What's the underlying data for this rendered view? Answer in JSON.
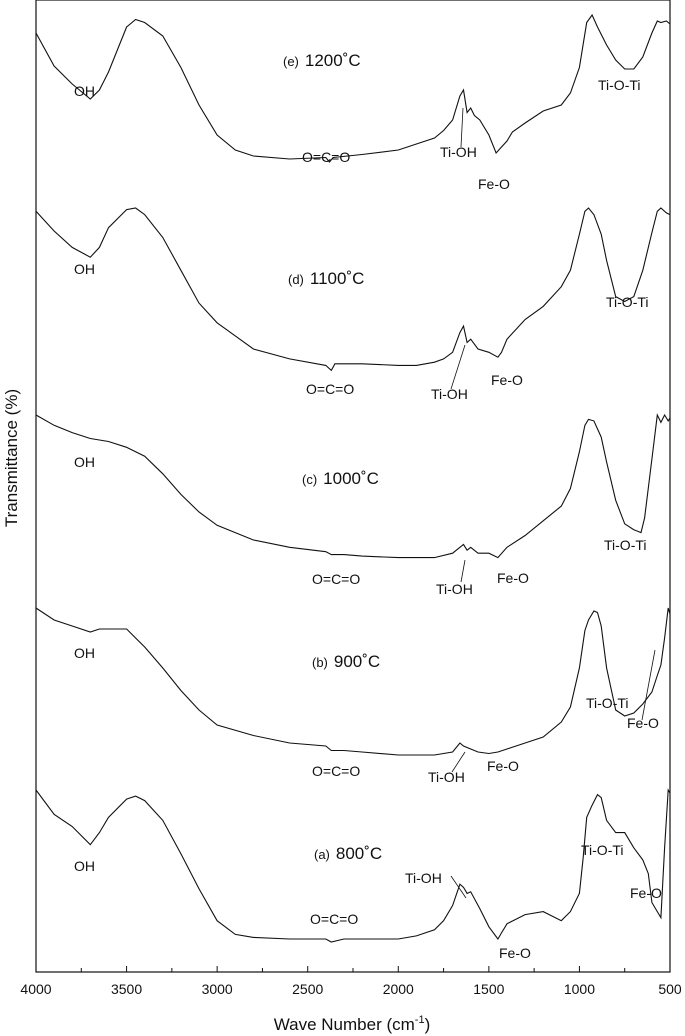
{
  "chart_data": {
    "type": "line",
    "xlabel_main": "Wave Number (cm",
    "xlabel_sup": "-1",
    "xlabel_end": ")",
    "ylabel": "Transmittance (%)",
    "xlim": [
      4000,
      500
    ],
    "xticks": [
      "4000",
      "3500",
      "3000",
      "2500",
      "2000",
      "1500",
      "1000",
      "500"
    ],
    "series": [
      {
        "prefix": "(e)",
        "temp": "1200˚C",
        "points": [
          [
            4000,
            0.88
          ],
          [
            3900,
            0.66
          ],
          [
            3800,
            0.54
          ],
          [
            3700,
            0.44
          ],
          [
            3650,
            0.5
          ],
          [
            3600,
            0.62
          ],
          [
            3500,
            0.92
          ],
          [
            3450,
            0.97
          ],
          [
            3400,
            0.95
          ],
          [
            3300,
            0.86
          ],
          [
            3200,
            0.65
          ],
          [
            3100,
            0.4
          ],
          [
            3000,
            0.2
          ],
          [
            2900,
            0.1
          ],
          [
            2800,
            0.06
          ],
          [
            2600,
            0.04
          ],
          [
            2400,
            0.05
          ],
          [
            2380,
            0.02
          ],
          [
            2360,
            0.05
          ],
          [
            2200,
            0.07
          ],
          [
            2000,
            0.1
          ],
          [
            1900,
            0.14
          ],
          [
            1800,
            0.18
          ],
          [
            1750,
            0.23
          ],
          [
            1700,
            0.3
          ],
          [
            1660,
            0.46
          ],
          [
            1640,
            0.5
          ],
          [
            1620,
            0.35
          ],
          [
            1600,
            0.38
          ],
          [
            1580,
            0.33
          ],
          [
            1550,
            0.3
          ],
          [
            1500,
            0.2
          ],
          [
            1460,
            0.08
          ],
          [
            1430,
            0.12
          ],
          [
            1400,
            0.16
          ],
          [
            1370,
            0.22
          ],
          [
            1300,
            0.28
          ],
          [
            1200,
            0.36
          ],
          [
            1100,
            0.4
          ],
          [
            1050,
            0.48
          ],
          [
            1000,
            0.65
          ],
          [
            960,
            0.95
          ],
          [
            930,
            1.0
          ],
          [
            900,
            0.92
          ],
          [
            850,
            0.8
          ],
          [
            800,
            0.7
          ],
          [
            750,
            0.64
          ],
          [
            700,
            0.64
          ],
          [
            650,
            0.72
          ],
          [
            600,
            0.88
          ],
          [
            570,
            0.96
          ],
          [
            550,
            0.95
          ],
          [
            520,
            0.96
          ],
          [
            500,
            0.94
          ]
        ]
      },
      {
        "prefix": "(d)",
        "temp": "1100˚C",
        "points": [
          [
            4000,
            0.98
          ],
          [
            3900,
            0.86
          ],
          [
            3800,
            0.76
          ],
          [
            3700,
            0.7
          ],
          [
            3650,
            0.76
          ],
          [
            3600,
            0.88
          ],
          [
            3500,
            0.99
          ],
          [
            3450,
            1.0
          ],
          [
            3400,
            0.96
          ],
          [
            3300,
            0.82
          ],
          [
            3200,
            0.62
          ],
          [
            3100,
            0.42
          ],
          [
            3000,
            0.3
          ],
          [
            2900,
            0.22
          ],
          [
            2800,
            0.14
          ],
          [
            2600,
            0.08
          ],
          [
            2400,
            0.04
          ],
          [
            2370,
            0.01
          ],
          [
            2350,
            0.05
          ],
          [
            2200,
            0.05
          ],
          [
            2000,
            0.04
          ],
          [
            1900,
            0.04
          ],
          [
            1800,
            0.06
          ],
          [
            1750,
            0.08
          ],
          [
            1700,
            0.12
          ],
          [
            1660,
            0.24
          ],
          [
            1640,
            0.28
          ],
          [
            1620,
            0.18
          ],
          [
            1600,
            0.2
          ],
          [
            1560,
            0.14
          ],
          [
            1500,
            0.12
          ],
          [
            1450,
            0.09
          ],
          [
            1430,
            0.12
          ],
          [
            1400,
            0.2
          ],
          [
            1300,
            0.32
          ],
          [
            1200,
            0.4
          ],
          [
            1100,
            0.52
          ],
          [
            1050,
            0.62
          ],
          [
            1000,
            0.84
          ],
          [
            970,
            0.98
          ],
          [
            950,
            1.0
          ],
          [
            920,
            0.96
          ],
          [
            880,
            0.84
          ],
          [
            850,
            0.68
          ],
          [
            800,
            0.46
          ],
          [
            750,
            0.43
          ],
          [
            700,
            0.46
          ],
          [
            650,
            0.62
          ],
          [
            600,
            0.85
          ],
          [
            570,
            0.98
          ],
          [
            550,
            1.0
          ],
          [
            520,
            0.97
          ],
          [
            500,
            0.96
          ]
        ]
      },
      {
        "prefix": "(c)",
        "temp": "1000˚C",
        "points": [
          [
            4000,
            1.0
          ],
          [
            3900,
            0.93
          ],
          [
            3800,
            0.88
          ],
          [
            3700,
            0.84
          ],
          [
            3600,
            0.82
          ],
          [
            3500,
            0.78
          ],
          [
            3400,
            0.72
          ],
          [
            3300,
            0.6
          ],
          [
            3200,
            0.46
          ],
          [
            3100,
            0.34
          ],
          [
            3000,
            0.25
          ],
          [
            2800,
            0.15
          ],
          [
            2600,
            0.1
          ],
          [
            2400,
            0.07
          ],
          [
            2370,
            0.05
          ],
          [
            2300,
            0.05
          ],
          [
            2200,
            0.04
          ],
          [
            2000,
            0.03
          ],
          [
            1800,
            0.03
          ],
          [
            1700,
            0.06
          ],
          [
            1660,
            0.1
          ],
          [
            1640,
            0.12
          ],
          [
            1620,
            0.08
          ],
          [
            1600,
            0.1
          ],
          [
            1560,
            0.06
          ],
          [
            1500,
            0.06
          ],
          [
            1450,
            0.03
          ],
          [
            1400,
            0.1
          ],
          [
            1300,
            0.18
          ],
          [
            1200,
            0.28
          ],
          [
            1100,
            0.38
          ],
          [
            1050,
            0.5
          ],
          [
            1000,
            0.75
          ],
          [
            970,
            0.93
          ],
          [
            950,
            0.97
          ],
          [
            920,
            0.96
          ],
          [
            880,
            0.85
          ],
          [
            850,
            0.68
          ],
          [
            800,
            0.42
          ],
          [
            750,
            0.26
          ],
          [
            700,
            0.22
          ],
          [
            660,
            0.2
          ],
          [
            640,
            0.3
          ],
          [
            600,
            0.7
          ],
          [
            570,
            1.0
          ],
          [
            550,
            0.95
          ],
          [
            530,
            1.0
          ],
          [
            510,
            0.96
          ],
          [
            500,
            0.98
          ]
        ]
      },
      {
        "prefix": "(b)",
        "temp": "900˚C",
        "points": [
          [
            4000,
            1.0
          ],
          [
            3900,
            0.92
          ],
          [
            3800,
            0.88
          ],
          [
            3700,
            0.84
          ],
          [
            3650,
            0.86
          ],
          [
            3500,
            0.86
          ],
          [
            3450,
            0.8
          ],
          [
            3400,
            0.74
          ],
          [
            3300,
            0.6
          ],
          [
            3200,
            0.45
          ],
          [
            3100,
            0.32
          ],
          [
            3000,
            0.22
          ],
          [
            2800,
            0.15
          ],
          [
            2600,
            0.1
          ],
          [
            2400,
            0.08
          ],
          [
            2370,
            0.05
          ],
          [
            2300,
            0.05
          ],
          [
            2200,
            0.04
          ],
          [
            2000,
            0.02
          ],
          [
            1800,
            0.02
          ],
          [
            1700,
            0.04
          ],
          [
            1660,
            0.1
          ],
          [
            1640,
            0.08
          ],
          [
            1600,
            0.06
          ],
          [
            1560,
            0.04
          ],
          [
            1500,
            0.03
          ],
          [
            1450,
            0.04
          ],
          [
            1400,
            0.06
          ],
          [
            1300,
            0.1
          ],
          [
            1200,
            0.14
          ],
          [
            1100,
            0.24
          ],
          [
            1050,
            0.34
          ],
          [
            1000,
            0.6
          ],
          [
            970,
            0.85
          ],
          [
            950,
            0.92
          ],
          [
            920,
            0.98
          ],
          [
            900,
            0.97
          ],
          [
            880,
            0.88
          ],
          [
            850,
            0.6
          ],
          [
            800,
            0.32
          ],
          [
            750,
            0.28
          ],
          [
            700,
            0.3
          ],
          [
            650,
            0.36
          ],
          [
            600,
            0.44
          ],
          [
            570,
            0.55
          ],
          [
            550,
            0.62
          ],
          [
            530,
            0.8
          ],
          [
            510,
            1.0
          ],
          [
            500,
            0.96
          ]
        ]
      },
      {
        "prefix": "(a)",
        "temp": "800˚C",
        "points": [
          [
            4000,
            1.0
          ],
          [
            3900,
            0.84
          ],
          [
            3800,
            0.76
          ],
          [
            3700,
            0.64
          ],
          [
            3650,
            0.72
          ],
          [
            3600,
            0.82
          ],
          [
            3500,
            0.94
          ],
          [
            3450,
            0.96
          ],
          [
            3400,
            0.93
          ],
          [
            3300,
            0.8
          ],
          [
            3200,
            0.58
          ],
          [
            3100,
            0.35
          ],
          [
            3000,
            0.14
          ],
          [
            2900,
            0.05
          ],
          [
            2800,
            0.03
          ],
          [
            2600,
            0.02
          ],
          [
            2400,
            0.02
          ],
          [
            2370,
            0.0
          ],
          [
            2300,
            0.02
          ],
          [
            2200,
            0.02
          ],
          [
            2000,
            0.02
          ],
          [
            1900,
            0.04
          ],
          [
            1800,
            0.08
          ],
          [
            1750,
            0.14
          ],
          [
            1700,
            0.24
          ],
          [
            1660,
            0.38
          ],
          [
            1640,
            0.36
          ],
          [
            1620,
            0.32
          ],
          [
            1600,
            0.33
          ],
          [
            1550,
            0.22
          ],
          [
            1500,
            0.1
          ],
          [
            1450,
            0.02
          ],
          [
            1430,
            0.06
          ],
          [
            1400,
            0.12
          ],
          [
            1300,
            0.18
          ],
          [
            1200,
            0.2
          ],
          [
            1100,
            0.14
          ],
          [
            1050,
            0.2
          ],
          [
            1000,
            0.32
          ],
          [
            980,
            0.55
          ],
          [
            960,
            0.82
          ],
          [
            930,
            0.9
          ],
          [
            900,
            0.97
          ],
          [
            880,
            0.95
          ],
          [
            850,
            0.8
          ],
          [
            800,
            0.72
          ],
          [
            750,
            0.72
          ],
          [
            700,
            0.62
          ],
          [
            650,
            0.54
          ],
          [
            620,
            0.45
          ],
          [
            600,
            0.26
          ],
          [
            570,
            0.2
          ],
          [
            550,
            0.16
          ],
          [
            530,
            0.62
          ],
          [
            510,
            1.0
          ],
          [
            500,
            0.98
          ]
        ]
      }
    ],
    "annotations": {
      "oh": "OH",
      "co2": "O=C=O",
      "tioh": "Ti-OH",
      "feo": "Fe-O",
      "tioti": "Ti-O-Ti"
    }
  }
}
